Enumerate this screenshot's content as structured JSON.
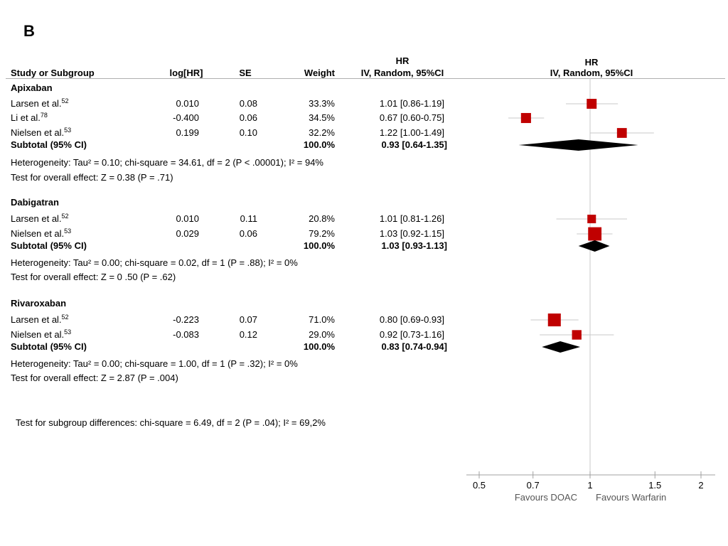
{
  "panel_label": "B",
  "headers": {
    "study": "Study or Subgroup",
    "loghr": "log[HR]",
    "se": "SE",
    "weight": "Weight",
    "hr_left_1": "HR",
    "hr_left_2": "IV, Random, 95%CI",
    "hr_right_1": "HR",
    "hr_right_2": "IV, Random, 95%CI"
  },
  "chart_data": {
    "type": "forest",
    "scale": "log",
    "x_ticks": [
      0.5,
      0.7,
      1,
      1.5,
      2
    ],
    "x_tick_labels": [
      "0.5",
      "0.7",
      "1",
      "1.5",
      "2"
    ],
    "reference_line": 1,
    "label_left": "Favours DOAC",
    "label_right": "Favours Warfarin",
    "overall_note": "Test for subgroup differences: chi-square = 6.49, df = 2 (P = .04); I² = 69,2%",
    "groups": [
      {
        "name": "Apixaban",
        "studies": [
          {
            "name": "Larsen et al.",
            "ref": "52",
            "loghr": "0.010",
            "se": "0.08",
            "weight": "33.3%",
            "weight_value": 33.3,
            "ci_text": "1.01 [0.86-1.19]",
            "hr": 1.01,
            "low": 0.86,
            "high": 1.19
          },
          {
            "name": "Li et al.",
            "ref": "78",
            "loghr": "-0.400",
            "se": "0.06",
            "weight": "34.5%",
            "weight_value": 34.5,
            "ci_text": "0.67 [0.60-0.75]",
            "hr": 0.67,
            "low": 0.6,
            "high": 0.75
          },
          {
            "name": "Nielsen et al.",
            "ref": "53",
            "loghr": "0.199",
            "se": "0.10",
            "weight": "32.2%",
            "weight_value": 32.2,
            "ci_text": "1.22 [1.00-1.49]",
            "hr": 1.22,
            "low": 1.0,
            "high": 1.49
          }
        ],
        "subtotal": {
          "label": "Subtotal (95% CI)",
          "weight": "100.0%",
          "ci_text": "0.93 [0.64-1.35]",
          "hr": 0.93,
          "low": 0.64,
          "high": 1.35
        },
        "heterogeneity": "Heterogeneity: Tau² =  0.10; chi-square = 34.61, df = 2 (P < .00001); I² = 94%",
        "overall_effect": "Test for overall effect: Z = 0.38 (P = .71)"
      },
      {
        "name": "Dabigatran",
        "studies": [
          {
            "name": "Larsen et al.",
            "ref": "52",
            "loghr": "0.010",
            "se": "0.11",
            "weight": "20.8%",
            "weight_value": 20.8,
            "ci_text": "1.01 [0.81-1.26]",
            "hr": 1.01,
            "low": 0.81,
            "high": 1.26
          },
          {
            "name": "Nielsen et al.",
            "ref": "53",
            "loghr": "0.029",
            "se": "0.06",
            "weight": "79.2%",
            "weight_value": 79.2,
            "ci_text": "1.03 [0.92-1.15]",
            "hr": 1.03,
            "low": 0.92,
            "high": 1.15
          }
        ],
        "subtotal": {
          "label": "Subtotal (95% CI)",
          "weight": "100.0%",
          "ci_text": "1.03 [0.93-1.13]",
          "hr": 1.03,
          "low": 0.93,
          "high": 1.13
        },
        "heterogeneity": "Heterogeneity: Tau² = 0.00; chi-square = 0.02, df = 1 (P = .88); I² = 0%",
        "overall_effect": "Test for overall effect: Z = 0 .50 (P = .62)"
      },
      {
        "name": "Rivaroxaban",
        "studies": [
          {
            "name": "Larsen et al.",
            "ref": "52",
            "loghr": "-0.223",
            "se": "0.07",
            "weight": "71.0%",
            "weight_value": 71.0,
            "ci_text": "0.80 [0.69-0.93]",
            "hr": 0.8,
            "low": 0.69,
            "high": 0.93
          },
          {
            "name": "Nielsen et al.",
            "ref": "53",
            "loghr": "-0.083",
            "se": "0.12",
            "weight": "29.0%",
            "weight_value": 29.0,
            "ci_text": "0.92 [0.73-1.16]",
            "hr": 0.92,
            "low": 0.73,
            "high": 1.16
          }
        ],
        "subtotal": {
          "label": "Subtotal (95% CI)",
          "weight": "100.0%",
          "ci_text": "0.83 [0.74-0.94]",
          "hr": 0.83,
          "low": 0.74,
          "high": 0.94
        },
        "heterogeneity": "Heterogeneity: Tau² = 0.00; chi-square = 1.00, df = 1 (P = .32); I² = 0%",
        "overall_effect": "Test for overall effect: Z = 2.87 (P = .004)"
      }
    ]
  },
  "colors": {
    "marker": "#c00000",
    "diamond": "#000000",
    "ci_line": "#c8c8c8",
    "axis": "#a0a0a0"
  }
}
